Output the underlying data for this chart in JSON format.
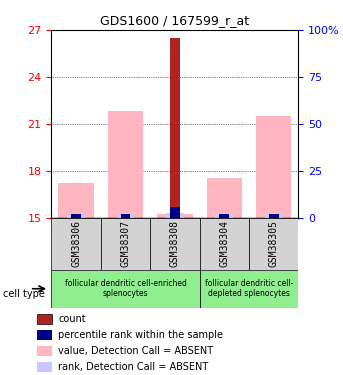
{
  "title": "GDS1600 / 167599_r_at",
  "samples": [
    "GSM38306",
    "GSM38307",
    "GSM38308",
    "GSM38304",
    "GSM38305"
  ],
  "ylim_left": [
    15,
    27
  ],
  "ylim_right": [
    0,
    100
  ],
  "yticks_left": [
    15,
    18,
    21,
    24,
    27
  ],
  "yticks_right": [
    0,
    25,
    50,
    75,
    100
  ],
  "value_absent": [
    17.2,
    21.8,
    15.2,
    17.5,
    21.5
  ],
  "rank_absent": [
    15.3,
    15.3,
    15.3,
    15.3,
    15.3
  ],
  "count": [
    15.2,
    15.2,
    26.5,
    15.2,
    15.2
  ],
  "percentile_rank": [
    15.2,
    15.2,
    15.65,
    15.2,
    15.2
  ],
  "bar_width": 0.4,
  "colors": {
    "count": "#b22222",
    "percentile_rank": "#00008b",
    "value_absent": "#ffb6c1",
    "rank_absent": "#c8c8ff"
  },
  "group1_samples": [
    "GSM38306",
    "GSM38307",
    "GSM38308"
  ],
  "group2_samples": [
    "GSM38304",
    "GSM38305"
  ],
  "group1_label": "follicular dendritic cell-enriched\nsplenocytes",
  "group2_label": "follicular dendritic cell-\ndepleted splenocytes",
  "group_bg_color": "#90ee90",
  "sample_bg_color": "#d3d3d3",
  "legend_items": [
    {
      "color": "#b22222",
      "label": "count"
    },
    {
      "color": "#00008b",
      "label": "percentile rank within the sample"
    },
    {
      "color": "#ffb6c1",
      "label": "value, Detection Call = ABSENT"
    },
    {
      "color": "#c8c8ff",
      "label": "rank, Detection Call = ABSENT"
    }
  ]
}
